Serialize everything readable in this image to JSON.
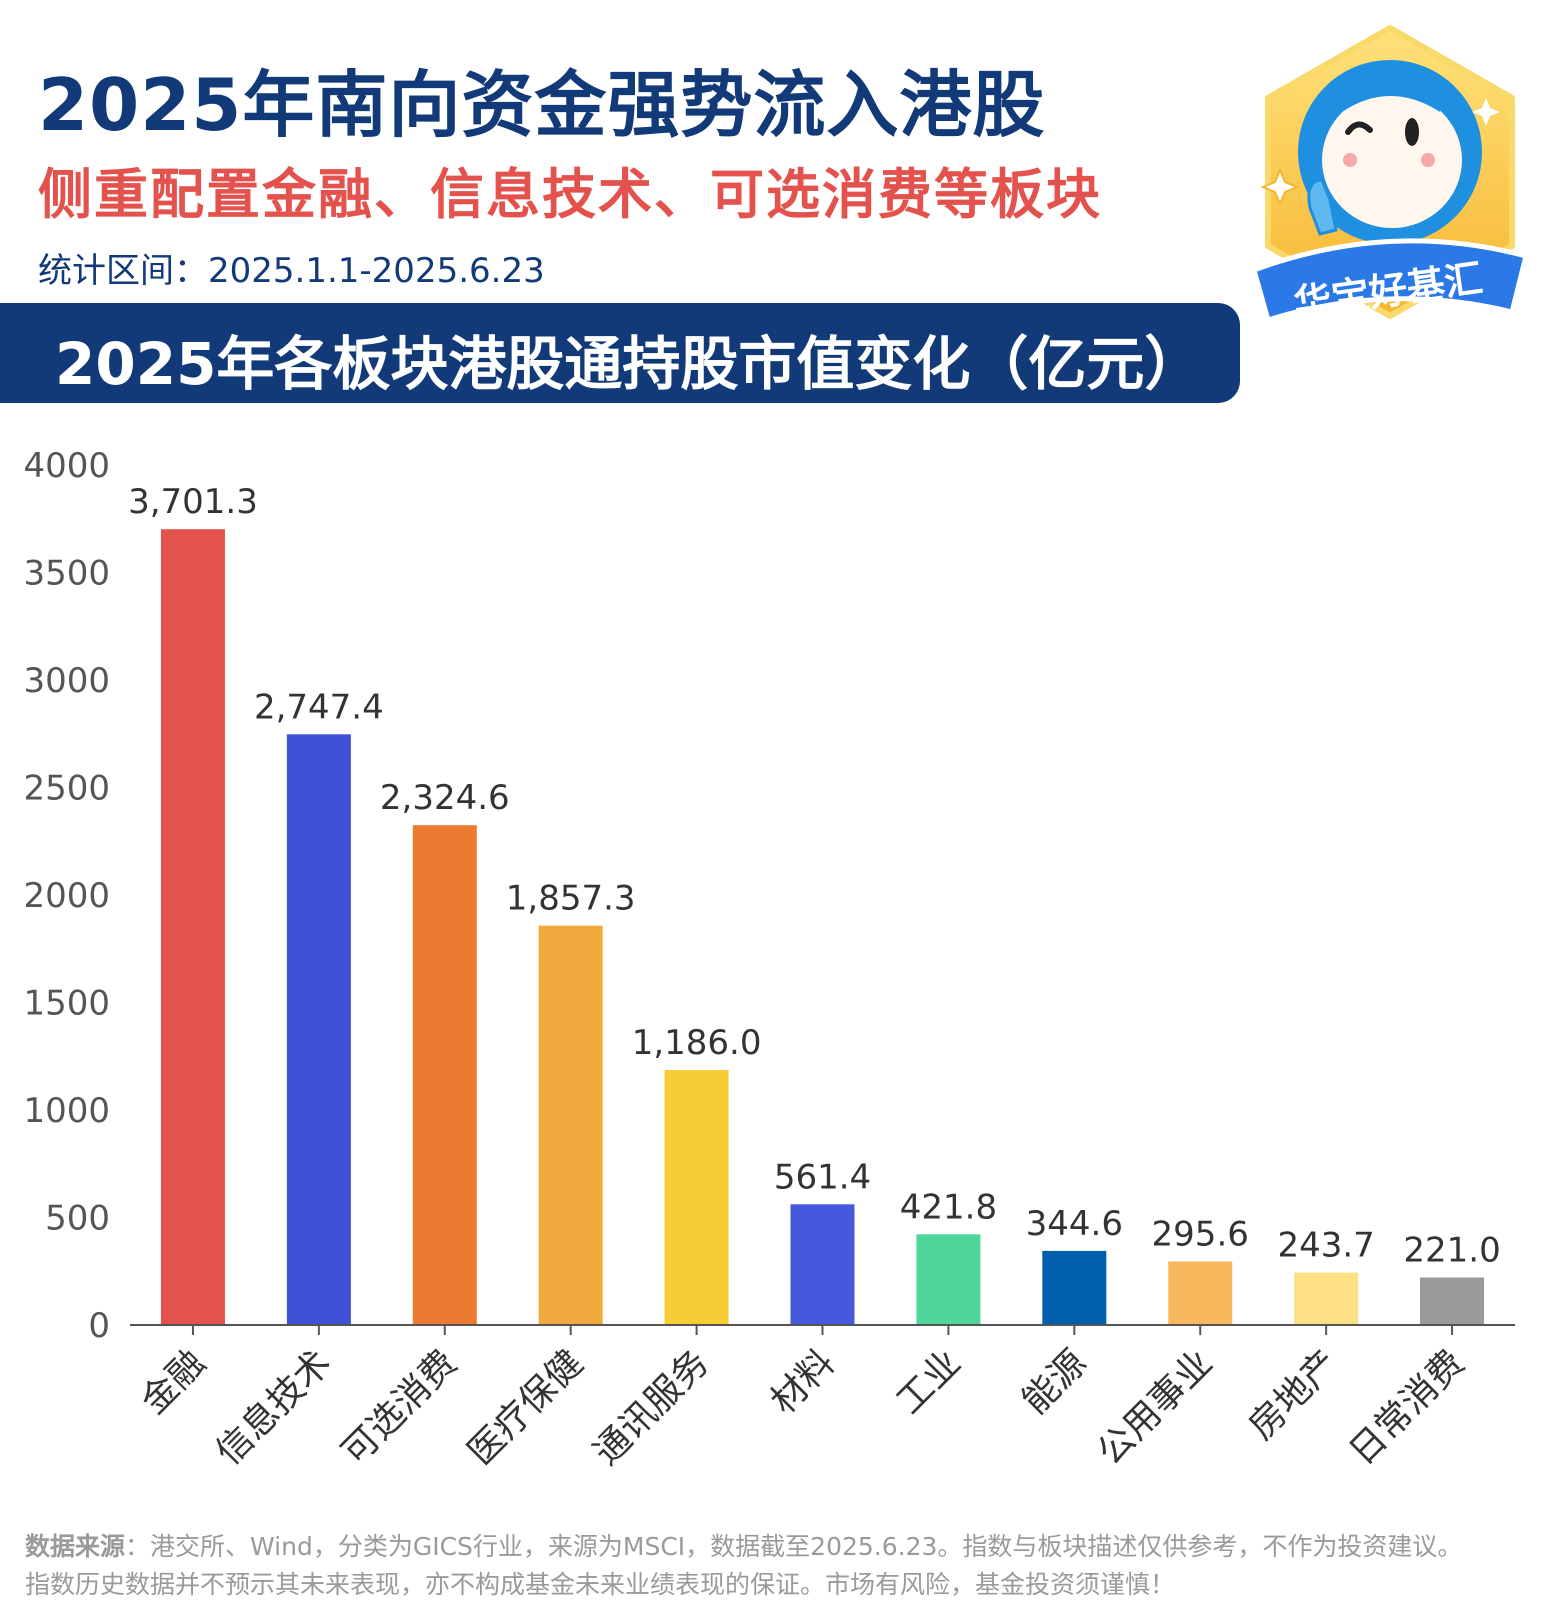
{
  "header": {
    "title": "2025年南向资金强势流入港股",
    "subtitle": "侧重配置金融、信息技术、可选消费等板块",
    "period": "统计区间：2025.1.1-2025.6.23",
    "banner": "2025年各板块港股通持股市值变化（亿元）"
  },
  "logo": {
    "text": "华宝好基汇"
  },
  "chart_data": {
    "type": "bar",
    "title": "2025年各板块港股通持股市值变化（亿元）",
    "categories": [
      "金融",
      "信息技术",
      "可选消费",
      "医疗保健",
      "通讯服务",
      "材料",
      "工业",
      "能源",
      "公用事业",
      "房地产",
      "日常消费"
    ],
    "values": [
      3701.3,
      2747.4,
      2324.6,
      1857.3,
      1186.0,
      561.4,
      421.8,
      344.6,
      295.6,
      243.7,
      221.0
    ],
    "data_labels": [
      "3,701.3",
      "2,747.4",
      "2,324.6",
      "1,857.3",
      "1,186.0",
      "561.4",
      "421.8",
      "344.6",
      "295.6",
      "243.7",
      "221.0"
    ],
    "colors": [
      "#e4524d",
      "#4150d8",
      "#ec7a30",
      "#f0a93c",
      "#f6cd35",
      "#4658dc",
      "#4fd699",
      "#0060ad",
      "#f8b95d",
      "#fde083",
      "#9a9a9a"
    ],
    "yticks": [
      "0",
      "500",
      "1000",
      "1500",
      "2000",
      "2500",
      "3000",
      "3500",
      "4000"
    ],
    "ylim": [
      0,
      4000
    ],
    "grid": false,
    "xlabel": "",
    "ylabel": ""
  },
  "footer": {
    "source_label": "数据来源",
    "source_text": "：港交所、Wind，分类为GICS行业，来源为MSCI，数据截至2025.6.23。指数与板块描述仅供参考，不作为投资建议。",
    "disclaimer": "指数历史数据并不预示其未来表现，亦不构成基金未来业绩表现的保证。市场有风险，基金投资须谨慎！"
  }
}
